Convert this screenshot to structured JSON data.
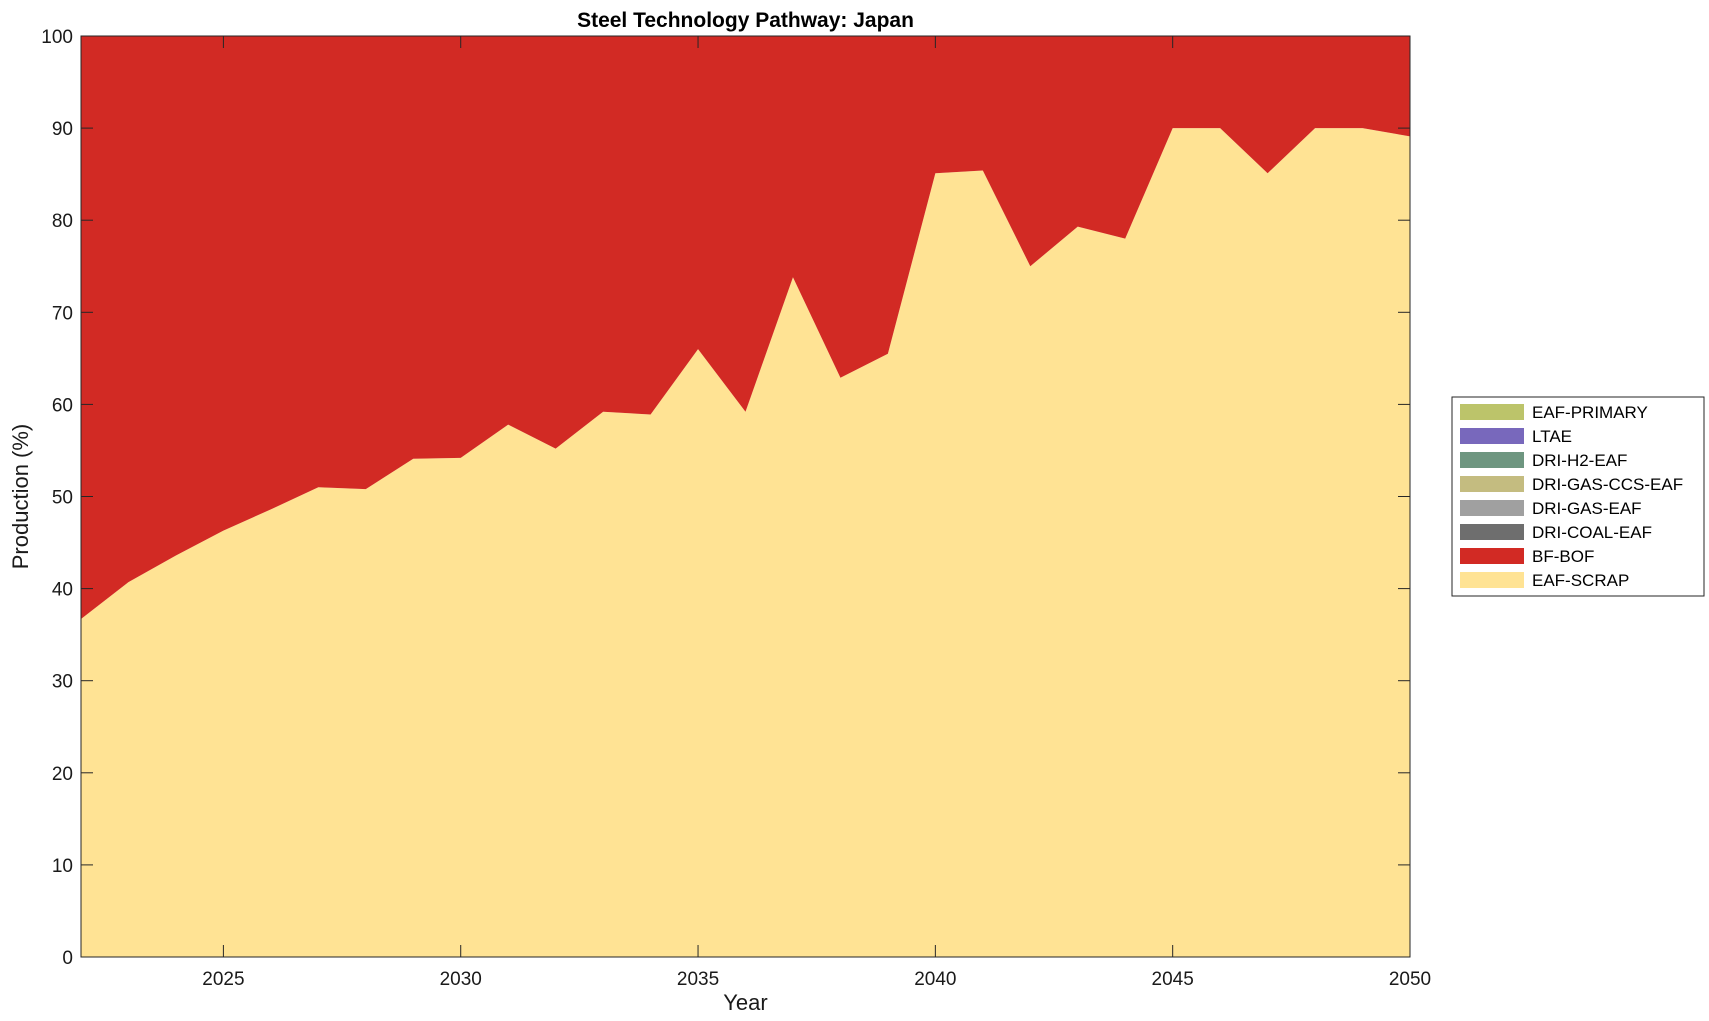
{
  "chart_data": {
    "type": "area",
    "title": "Steel Technology Pathway: Japan",
    "xlabel": "Year",
    "ylabel": "Production (%)",
    "xlim": [
      2022,
      2050
    ],
    "ylim": [
      0,
      100
    ],
    "xticks": [
      2025,
      2030,
      2035,
      2040,
      2045,
      2050
    ],
    "yticks": [
      0,
      10,
      20,
      30,
      40,
      50,
      60,
      70,
      80,
      90,
      100
    ],
    "grid": false,
    "legend_position": "right",
    "stacked": true,
    "x": [
      2022,
      2023,
      2024,
      2025,
      2026,
      2027,
      2028,
      2029,
      2030,
      2031,
      2032,
      2033,
      2034,
      2035,
      2036,
      2037,
      2038,
      2039,
      2040,
      2041,
      2042,
      2043,
      2044,
      2045,
      2046,
      2047,
      2048,
      2049,
      2050
    ],
    "series": [
      {
        "name": "EAF-SCRAP",
        "color": "#FFE394",
        "values": [
          36.7,
          40.7,
          43.6,
          46.3,
          48.6,
          51.0,
          50.8,
          54.1,
          54.2,
          57.8,
          55.2,
          59.2,
          58.9,
          66.0,
          59.2,
          73.8,
          62.9,
          65.5,
          85.1,
          85.4,
          75.0,
          79.3,
          78.0,
          90.0,
          90.0,
          85.1,
          90.0,
          90.0,
          89.1
        ]
      },
      {
        "name": "BF-BOF",
        "color": "#D22A24",
        "values": [
          63.3,
          59.3,
          56.4,
          53.7,
          51.4,
          49.0,
          49.2,
          45.9,
          45.8,
          42.2,
          44.8,
          40.8,
          41.1,
          34.0,
          40.8,
          26.2,
          37.1,
          34.5,
          14.9,
          14.6,
          25.0,
          20.7,
          22.0,
          10.0,
          10.0,
          14.9,
          10.0,
          10.0,
          10.9
        ]
      },
      {
        "name": "DRI-COAL-EAF",
        "color": "#6E6E6E",
        "values": [
          0,
          0,
          0,
          0,
          0,
          0,
          0,
          0,
          0,
          0,
          0,
          0,
          0,
          0,
          0,
          0,
          0,
          0,
          0,
          0,
          0,
          0,
          0,
          0,
          0,
          0,
          0,
          0,
          0
        ]
      },
      {
        "name": "DRI-GAS-EAF",
        "color": "#A0A0A0",
        "values": [
          0,
          0,
          0,
          0,
          0,
          0,
          0,
          0,
          0,
          0,
          0,
          0,
          0,
          0,
          0,
          0,
          0,
          0,
          0,
          0,
          0,
          0,
          0,
          0,
          0,
          0,
          0,
          0,
          0
        ]
      },
      {
        "name": "DRI-GAS-CCS-EAF",
        "color": "#C4BC80",
        "values": [
          0,
          0,
          0,
          0,
          0,
          0,
          0,
          0,
          0,
          0,
          0,
          0,
          0,
          0,
          0,
          0,
          0,
          0,
          0,
          0,
          0,
          0,
          0,
          0,
          0,
          0,
          0,
          0,
          0
        ]
      },
      {
        "name": "DRI-H2-EAF",
        "color": "#6E9680",
        "values": [
          0,
          0,
          0,
          0,
          0,
          0,
          0,
          0,
          0,
          0,
          0,
          0,
          0,
          0,
          0,
          0,
          0,
          0,
          0,
          0,
          0,
          0,
          0,
          0,
          0,
          0,
          0,
          0,
          0
        ]
      },
      {
        "name": "LTAE",
        "color": "#7868BC",
        "values": [
          0,
          0,
          0,
          0,
          0,
          0,
          0,
          0,
          0,
          0,
          0,
          0,
          0,
          0,
          0,
          0,
          0,
          0,
          0,
          0,
          0,
          0,
          0,
          0,
          0,
          0,
          0,
          0,
          0
        ]
      },
      {
        "name": "EAF-PRIMARY",
        "color": "#BCC46A",
        "values": [
          0,
          0,
          0,
          0,
          0,
          0,
          0,
          0,
          0,
          0,
          0,
          0,
          0,
          0,
          0,
          0,
          0,
          0,
          0,
          0,
          0,
          0,
          0,
          0,
          0,
          0,
          0,
          0,
          0
        ]
      }
    ],
    "legend_order": [
      "EAF-PRIMARY",
      "LTAE",
      "DRI-H2-EAF",
      "DRI-GAS-CCS-EAF",
      "DRI-GAS-EAF",
      "DRI-COAL-EAF",
      "BF-BOF",
      "EAF-SCRAP"
    ]
  }
}
